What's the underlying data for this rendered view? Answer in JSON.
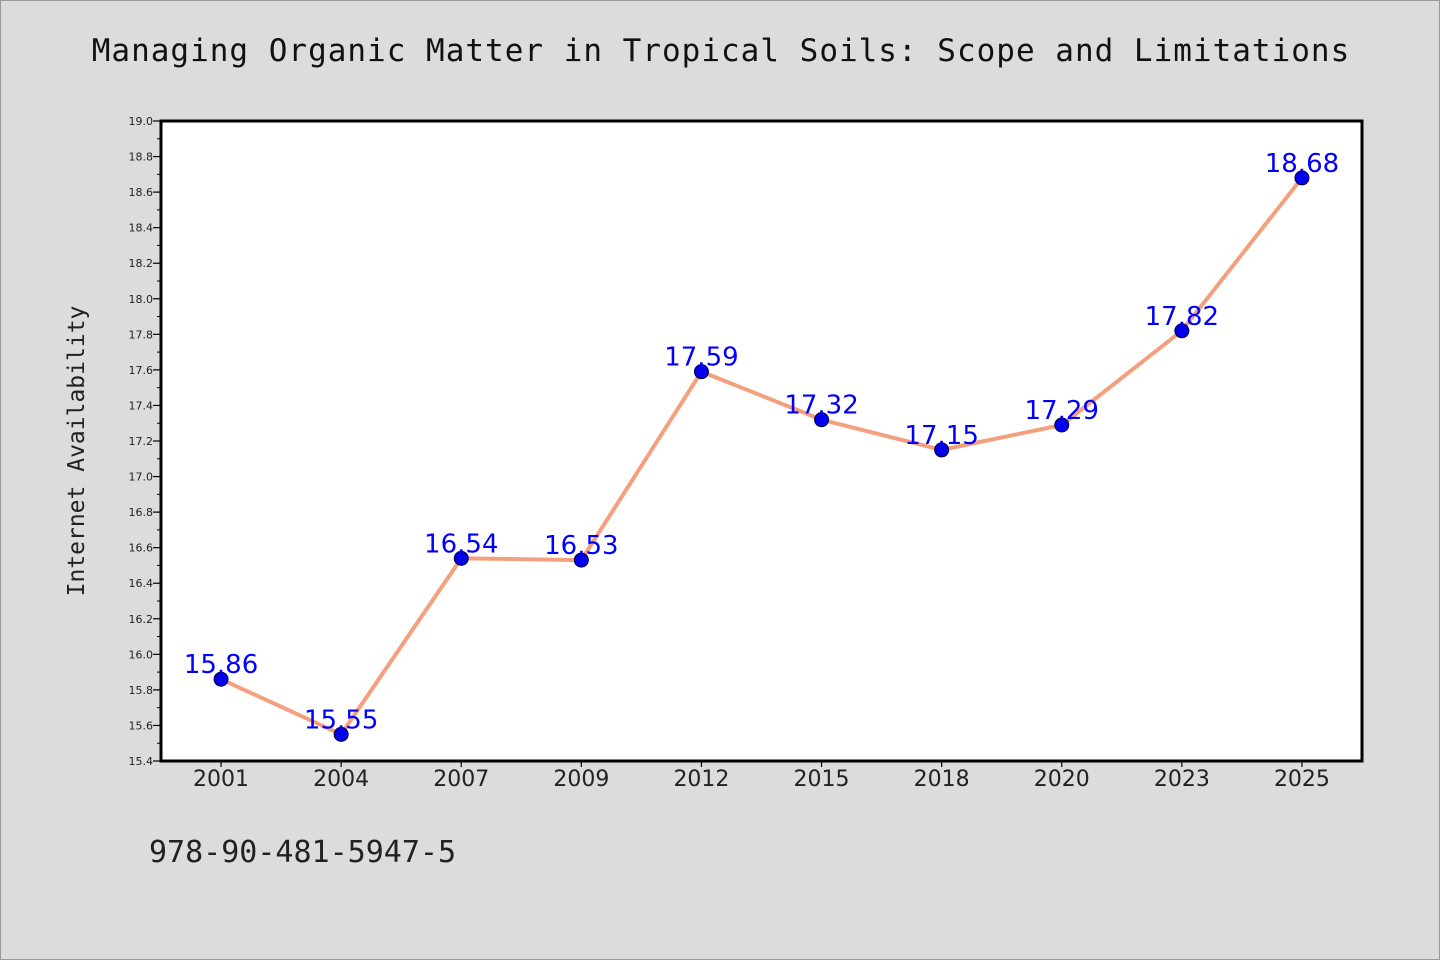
{
  "title": "Managing Organic Matter in Tropical Soils: Scope and Limitations",
  "footer_text": "978-90-481-5947-5",
  "colors": {
    "background": "#dcdcdc",
    "plot_background": "#ffffff",
    "line": "#f4a07e",
    "marker": "#0000ee",
    "data_label": "#0000ff"
  },
  "chart_data": {
    "type": "line",
    "title": "Managing Organic Matter in Tropical Soils: Scope and Limitations",
    "xlabel": "",
    "ylabel": "Internet Availability",
    "categories": [
      "2001",
      "2004",
      "2007",
      "2009",
      "2012",
      "2015",
      "2018",
      "2020",
      "2023",
      "2025"
    ],
    "series": [
      {
        "values": [
          15.86,
          15.55,
          16.54,
          16.53,
          17.59,
          17.32,
          17.15,
          17.29,
          17.82,
          18.68
        ],
        "labels": [
          "15.86",
          "15.55",
          "16.54",
          "16.53",
          "17.59",
          "17.32",
          "17.15",
          "17.29",
          "17.82",
          "18.68"
        ]
      }
    ],
    "ylim": [
      15.4,
      19.0
    ],
    "yticks": [
      "15.4",
      "15.6",
      "15.8",
      "16.0",
      "16.2",
      "16.4",
      "16.6",
      "16.8",
      "17.0",
      "17.2",
      "17.4",
      "17.6",
      "17.8",
      "18.0",
      "18.2",
      "18.4",
      "18.6",
      "18.8",
      "19.0"
    ],
    "grid": false,
    "legend": "none"
  }
}
